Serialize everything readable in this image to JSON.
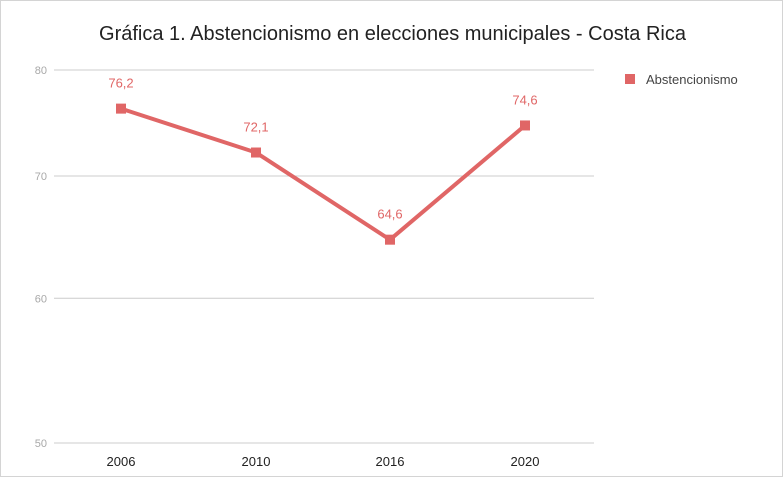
{
  "chart_data": {
    "type": "line",
    "title": "Gráfica 1. Abstencionismo en elecciones municipales - Costa Rica",
    "categories": [
      "2006",
      "2010",
      "2016",
      "2020"
    ],
    "series": [
      {
        "name": "Abstencionismo",
        "values": [
          76.2,
          72.1,
          64.6,
          74.6
        ],
        "data_labels": [
          "76,2",
          "72,1",
          "64,6",
          "74,6"
        ],
        "color": "#e06666"
      }
    ],
    "y_ticks": [
      50,
      60,
      70,
      80
    ],
    "ylim": [
      50,
      80
    ],
    "y_scale": "log",
    "grid": true,
    "legend_position": "right",
    "xlabel": "",
    "ylabel": ""
  }
}
